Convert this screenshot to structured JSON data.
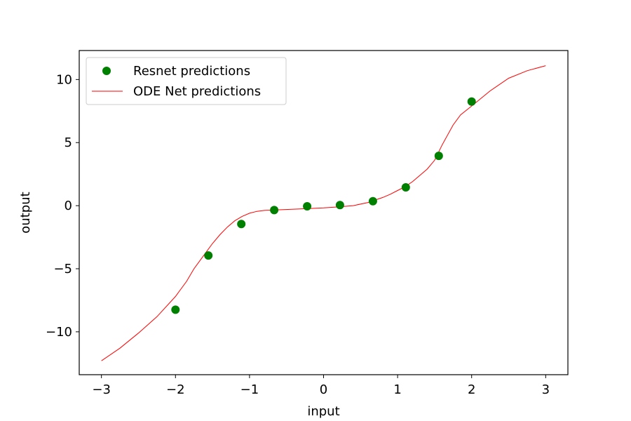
{
  "chart_data": {
    "type": "scatter",
    "xlabel": "input",
    "ylabel": "output",
    "xlim": [
      -3.3,
      3.3
    ],
    "ylim": [
      -13.4,
      12.3
    ],
    "xticks": [
      -3,
      -2,
      -1,
      0,
      1,
      2,
      3
    ],
    "xtick_labels": [
      "−3",
      "−2",
      "−1",
      "0",
      "1",
      "2",
      "3"
    ],
    "yticks": [
      -10,
      -5,
      0,
      5,
      10
    ],
    "ytick_labels": [
      "−10",
      "−5",
      "0",
      "5",
      "10"
    ],
    "grid": false,
    "legend_position": "top-left",
    "series": [
      {
        "name": "Resnet predictions",
        "kind": "scatter",
        "color": "#008000",
        "x": [
          -2.0,
          -1.556,
          -1.111,
          -0.667,
          -0.222,
          0.222,
          0.667,
          1.111,
          1.556,
          2.0
        ],
        "y": [
          -8.25,
          -3.95,
          -1.45,
          -0.35,
          -0.05,
          0.05,
          0.35,
          1.45,
          3.95,
          8.25
        ]
      },
      {
        "name": "ODE Net predictions",
        "kind": "line",
        "color": "#ff0000",
        "x": [
          -3.0,
          -2.75,
          -2.5,
          -2.25,
          -2.0,
          -1.85,
          -1.75,
          -1.6,
          -1.5,
          -1.4,
          -1.3,
          -1.2,
          -1.1,
          -1.0,
          -0.9,
          -0.8,
          -0.6,
          -0.4,
          -0.2,
          0.0,
          0.2,
          0.4,
          0.6,
          0.8,
          0.9,
          1.0,
          1.1,
          1.2,
          1.3,
          1.4,
          1.5,
          1.6,
          1.75,
          1.85,
          2.0,
          2.25,
          2.5,
          2.75,
          3.0
        ],
        "y": [
          -12.3,
          -11.3,
          -10.1,
          -8.8,
          -7.2,
          -6.0,
          -5.0,
          -3.8,
          -3.0,
          -2.3,
          -1.7,
          -1.2,
          -0.85,
          -0.6,
          -0.45,
          -0.38,
          -0.33,
          -0.28,
          -0.23,
          -0.18,
          -0.1,
          0.0,
          0.25,
          0.65,
          0.9,
          1.2,
          1.5,
          1.9,
          2.4,
          2.9,
          3.6,
          4.8,
          6.4,
          7.2,
          7.9,
          9.1,
          10.1,
          10.7,
          11.1
        ]
      }
    ]
  }
}
